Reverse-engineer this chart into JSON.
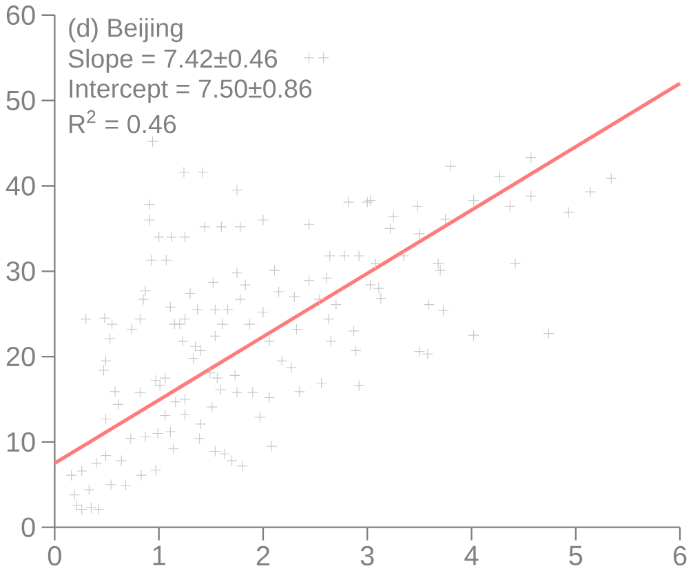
{
  "chart_data": {
    "type": "scatter",
    "xlim": [
      0,
      6
    ],
    "ylim": [
      0,
      60
    ],
    "xticks": [
      0,
      1,
      2,
      3,
      4,
      5,
      6
    ],
    "yticks": [
      0,
      10,
      20,
      30,
      40,
      50,
      60
    ],
    "grid": false,
    "marker": "cross",
    "annotations": [
      "(d) Beijing",
      "Slope = 7.42±0.46",
      "Intercept = 7.50±0.86",
      "R$^{2}$ = 0.46"
    ],
    "series": [
      {
        "color": "#c8c8c8",
        "x": [
          2.44,
          2.58,
          0.94,
          1.24,
          1.42,
          1.75,
          2.82,
          3.0,
          0.91,
          0.91,
          1.0,
          1.12,
          1.25,
          1.44,
          1.6,
          1.78,
          2.0,
          2.44,
          2.64,
          2.78,
          2.92,
          0.93,
          1.07,
          3.8,
          4.57,
          4.27,
          5.34,
          5.14,
          4.57,
          4.02,
          3.03,
          3.48,
          4.37,
          4.93,
          3.25,
          3.75,
          3.22,
          3.5,
          3.68,
          3.7,
          4.42,
          3.35,
          3.08,
          3.11,
          3.13,
          3.59,
          3.73,
          4.02,
          4.74,
          3.5,
          3.58,
          0.3,
          0.48,
          0.55,
          0.53,
          0.49,
          0.47,
          0.58,
          0.61,
          0.49,
          0.74,
          0.82,
          0.85,
          0.87,
          0.82,
          0.73,
          0.87,
          0.99,
          0.97,
          1.01,
          1.11,
          1.15,
          1.23,
          1.25,
          1.3,
          1.37,
          1.4,
          1.33,
          1.06,
          1.11,
          1.25,
          1.4,
          1.39,
          1.14,
          0.97,
          0.83,
          0.68,
          0.54,
          0.49,
          0.64,
          0.4,
          0.26,
          0.16,
          0.33,
          0.21,
          0.26,
          0.35,
          0.42,
          0.19,
          1.52,
          1.54,
          1.66,
          1.54,
          1.61,
          1.49,
          1.56,
          1.51,
          1.59,
          1.75,
          1.83,
          1.78,
          1.73,
          1.75,
          1.54,
          1.63,
          1.7,
          1.8,
          1.87,
          1.9,
          1.97,
          2.0,
          2.08,
          2.11,
          2.15,
          2.06,
          2.06,
          2.18,
          2.27,
          2.3,
          2.32,
          2.35,
          2.44,
          2.54,
          2.56,
          2.63,
          2.65,
          2.7,
          2.61,
          2.87,
          2.89,
          2.92,
          3.03,
          1.16,
          1.25,
          1.06,
          1.35,
          1.2
        ],
        "values": [
          55,
          55,
          45.2,
          41.6,
          41.6,
          39.5,
          38.1,
          38.1,
          37.8,
          36,
          34,
          34,
          34,
          35.2,
          35.2,
          35.2,
          36,
          35.5,
          31.8,
          31.8,
          31.8,
          31.3,
          31.3,
          42.3,
          43.3,
          41.1,
          40.9,
          39.3,
          38.8,
          38.3,
          38.3,
          37.6,
          37.6,
          36.9,
          36.4,
          36.1,
          35,
          34.4,
          30.9,
          30.1,
          30.9,
          31.8,
          30.9,
          28,
          26.8,
          26.1,
          25.4,
          22.5,
          22.7,
          20.6,
          20.3,
          24.4,
          24.5,
          23.8,
          22.1,
          19.5,
          18.4,
          15.9,
          14.4,
          12.7,
          23.2,
          24.4,
          26.7,
          27.7,
          15.8,
          10.4,
          10.6,
          11,
          17.2,
          16.6,
          25.8,
          23.8,
          21.8,
          24.4,
          27.4,
          25.5,
          20.7,
          19.8,
          13.1,
          11.2,
          13.2,
          12.1,
          10.4,
          9.2,
          6.7,
          6.1,
          4.9,
          5,
          8.4,
          7.8,
          7.5,
          6.6,
          6.1,
          4.4,
          2.6,
          2.1,
          2.3,
          2.1,
          3.8,
          28.7,
          25.5,
          25.5,
          22.4,
          23.8,
          18.1,
          17.5,
          14.1,
          16.1,
          29.8,
          28.4,
          26.7,
          17.8,
          15.8,
          8.9,
          8.6,
          7.8,
          7.2,
          23.8,
          15.8,
          12.9,
          25.2,
          9.5,
          30.1,
          27.6,
          21.8,
          15.2,
          19.5,
          18.7,
          27,
          23.2,
          15.9,
          28.9,
          26.7,
          16.9,
          24.4,
          21.8,
          26.1,
          29.2,
          23,
          20.7,
          16.6,
          28.4,
          14.7,
          15,
          17.5,
          21.2,
          23.8
        ]
      },
      {
        "type": "line",
        "color": "#ff7b7b",
        "marker": "none",
        "x": [
          0,
          6
        ],
        "values": [
          7.5,
          52
        ]
      }
    ]
  }
}
